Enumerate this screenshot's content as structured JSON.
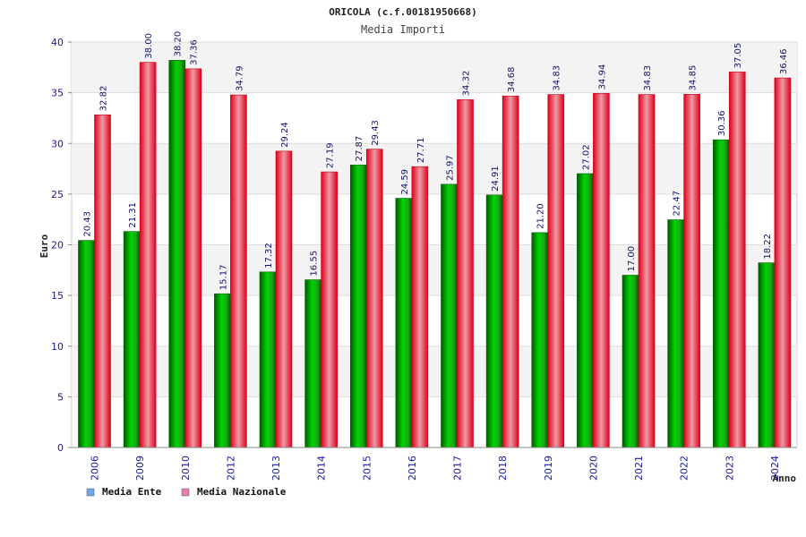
{
  "chart_data": {
    "type": "bar",
    "title": "ORICOLA (c.f.00181950668)",
    "subtitle": "Media Importi",
    "xlabel": "Anno",
    "ylabel": "Euro",
    "ylim": [
      0,
      40
    ],
    "yticks": [
      0,
      5,
      10,
      15,
      20,
      25,
      30,
      35,
      40
    ],
    "grid": true,
    "legend_position": "bottom-left",
    "categories": [
      "2006",
      "2009",
      "2010",
      "2012",
      "2013",
      "2014",
      "2015",
      "2016",
      "2017",
      "2018",
      "2019",
      "2020",
      "2021",
      "2022",
      "2023",
      "2024"
    ],
    "series": [
      {
        "name": "Media Ente",
        "color": "#00b400",
        "legend_color": "#6fa8f0",
        "values": [
          20.43,
          21.31,
          38.2,
          15.17,
          17.32,
          16.55,
          27.87,
          24.59,
          25.97,
          24.91,
          21.2,
          27.02,
          17.0,
          22.47,
          30.36,
          18.22
        ],
        "labels": [
          "20.43",
          "21.31",
          "38.20",
          "15.17",
          "17.32",
          "16.55",
          "27.87",
          "24.59",
          "25.97",
          "24.91",
          "21.20",
          "27.02",
          "17.00",
          "22.47",
          "30.36",
          "18.22"
        ]
      },
      {
        "name": "Media Nazionale",
        "color": "#e8001c",
        "legend_color": "#e87fb0",
        "values": [
          32.82,
          38.0,
          37.36,
          34.79,
          29.24,
          27.19,
          29.43,
          27.71,
          34.32,
          34.68,
          34.83,
          34.94,
          34.83,
          34.85,
          37.05,
          36.46
        ],
        "labels": [
          "32.82",
          "38.00",
          "37.36",
          "34.79",
          "29.24",
          "27.19",
          "29.43",
          "27.71",
          "34.32",
          "34.68",
          "34.83",
          "34.94",
          "34.83",
          "34.85",
          "37.05",
          "36.46"
        ]
      }
    ]
  }
}
